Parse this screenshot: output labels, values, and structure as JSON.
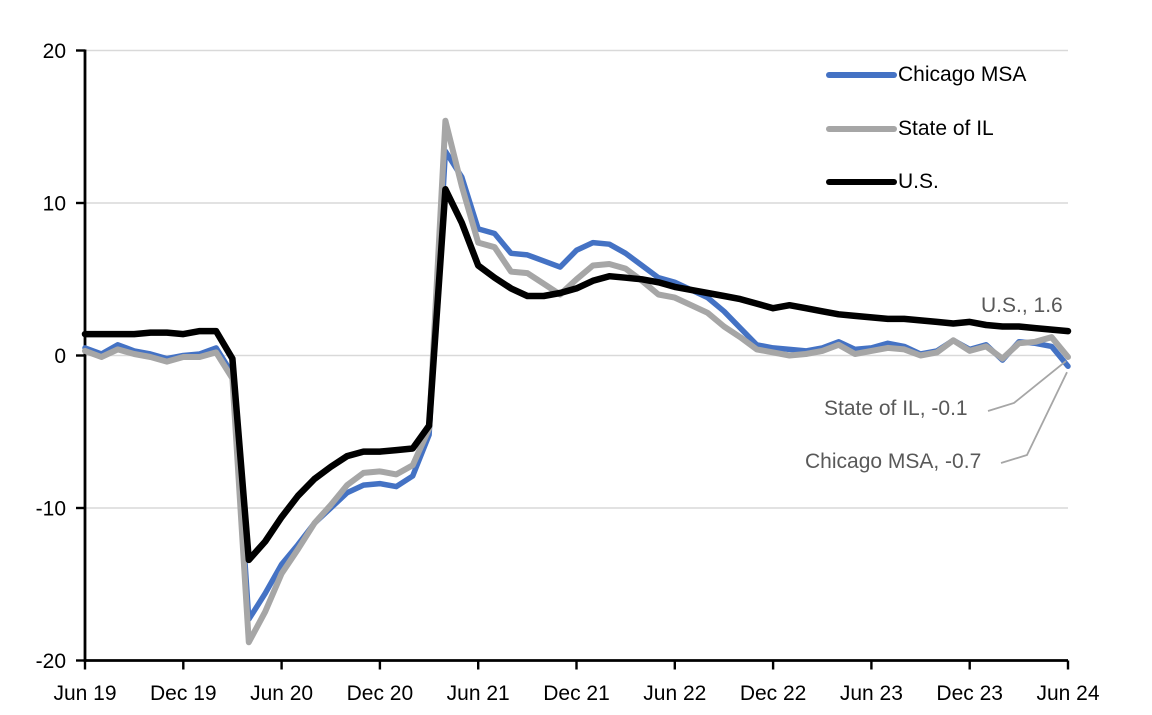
{
  "legend": {
    "items": [
      {
        "label": "Chicago MSA",
        "color": "#4472C4"
      },
      {
        "label": "State of IL",
        "color": "#A6A6A6"
      },
      {
        "label": "U.S.",
        "color": "#000000"
      }
    ]
  },
  "annotations": {
    "us": "U.S., 1.6",
    "state_il": "State of IL, -0.1",
    "chicago": "Chicago MSA, -0.7"
  },
  "colors": {
    "chicago_line": "#4472C4",
    "state_il_line": "#A6A6A6",
    "us_line": "#000000",
    "gridline": "#D9D9D9",
    "axis": "#000000",
    "annotation_text": "#595959",
    "leader_line": "#A6A6A6"
  },
  "chart_data": {
    "type": "line",
    "title": "",
    "xlabel": "",
    "ylabel": "",
    "ylim": [
      -20,
      20
    ],
    "yticks": [
      20,
      10,
      0,
      -10,
      -20
    ],
    "gridlines": [
      20,
      10,
      0,
      -10
    ],
    "grid": "horizontal",
    "legend_position": "top-right",
    "x_tick_labels": [
      "Jun 19",
      "Dec 19",
      "Jun 20",
      "Dec 20",
      "Jun 21",
      "Dec 21",
      "Jun 22",
      "Dec 22",
      "Jun 23",
      "Dec 23",
      "Jun 24"
    ],
    "x": [
      "Jun-19",
      "Jul-19",
      "Aug-19",
      "Sep-19",
      "Oct-19",
      "Nov-19",
      "Dec-19",
      "Jan-20",
      "Feb-20",
      "Mar-20",
      "Apr-20",
      "May-20",
      "Jun-20",
      "Jul-20",
      "Aug-20",
      "Sep-20",
      "Oct-20",
      "Nov-20",
      "Dec-20",
      "Jan-21",
      "Feb-21",
      "Mar-21",
      "Apr-21",
      "May-21",
      "Jun-21",
      "Jul-21",
      "Aug-21",
      "Sep-21",
      "Oct-21",
      "Nov-21",
      "Dec-21",
      "Jan-22",
      "Feb-22",
      "Mar-22",
      "Apr-22",
      "May-22",
      "Jun-22",
      "Jul-22",
      "Aug-22",
      "Sep-22",
      "Oct-22",
      "Nov-22",
      "Dec-22",
      "Jan-23",
      "Feb-23",
      "Mar-23",
      "Apr-23",
      "May-23",
      "Jun-23",
      "Jul-23",
      "Aug-23",
      "Sep-23",
      "Oct-23",
      "Nov-23",
      "Dec-23",
      "Jan-24",
      "Feb-24",
      "Mar-24",
      "Apr-24",
      "May-24",
      "Jun-24"
    ],
    "series": [
      {
        "name": "Chicago MSA",
        "color": "#4472C4",
        "end_label": "Chicago MSA, -0.7",
        "end_value": -0.7,
        "values": [
          0.5,
          0.1,
          0.7,
          0.3,
          0.1,
          -0.2,
          0.0,
          0.1,
          0.5,
          -1.2,
          -17.3,
          -15.6,
          -13.7,
          -12.4,
          -11.0,
          -10.0,
          -9.0,
          -8.5,
          -8.4,
          -8.6,
          -7.9,
          -5.2,
          13.4,
          11.7,
          8.3,
          8.0,
          6.7,
          6.6,
          6.2,
          5.8,
          6.9,
          7.4,
          7.3,
          6.7,
          5.9,
          5.1,
          4.8,
          4.3,
          3.8,
          2.9,
          1.8,
          0.7,
          0.5,
          0.4,
          0.3,
          0.5,
          0.9,
          0.4,
          0.5,
          0.8,
          0.6,
          0.1,
          0.3,
          1.0,
          0.4,
          0.7,
          -0.3,
          0.9,
          0.8,
          0.6,
          -0.7
        ]
      },
      {
        "name": "State of IL",
        "color": "#A6A6A6",
        "end_label": "State of IL, -0.1",
        "end_value": -0.1,
        "values": [
          0.3,
          -0.1,
          0.4,
          0.1,
          -0.1,
          -0.4,
          -0.1,
          -0.1,
          0.2,
          -1.5,
          -18.8,
          -16.8,
          -14.3,
          -12.7,
          -11.0,
          -9.8,
          -8.5,
          -7.7,
          -7.6,
          -7.8,
          -7.2,
          -4.8,
          15.4,
          11.1,
          7.4,
          7.1,
          5.5,
          5.4,
          4.7,
          4.0,
          5.0,
          5.9,
          6.0,
          5.7,
          4.9,
          4.0,
          3.8,
          3.3,
          2.8,
          1.9,
          1.2,
          0.4,
          0.2,
          0.0,
          0.1,
          0.3,
          0.7,
          0.1,
          0.3,
          0.5,
          0.4,
          0.0,
          0.2,
          1.0,
          0.3,
          0.6,
          -0.2,
          0.8,
          0.9,
          1.2,
          -0.1
        ]
      },
      {
        "name": "U.S.",
        "color": "#000000",
        "end_label": "U.S., 1.6",
        "end_value": 1.6,
        "values": [
          1.4,
          1.4,
          1.4,
          1.4,
          1.5,
          1.5,
          1.4,
          1.6,
          1.6,
          -0.2,
          -13.4,
          -12.2,
          -10.6,
          -9.2,
          -8.1,
          -7.3,
          -6.6,
          -6.3,
          -6.3,
          -6.2,
          -6.1,
          -4.6,
          10.9,
          8.7,
          5.9,
          5.1,
          4.4,
          3.9,
          3.9,
          4.1,
          4.4,
          4.9,
          5.2,
          5.1,
          5.0,
          4.8,
          4.5,
          4.3,
          4.1,
          3.9,
          3.7,
          3.4,
          3.1,
          3.3,
          3.1,
          2.9,
          2.7,
          2.6,
          2.5,
          2.4,
          2.4,
          2.3,
          2.2,
          2.1,
          2.2,
          2.0,
          1.9,
          1.9,
          1.8,
          1.7,
          1.6
        ]
      }
    ]
  }
}
